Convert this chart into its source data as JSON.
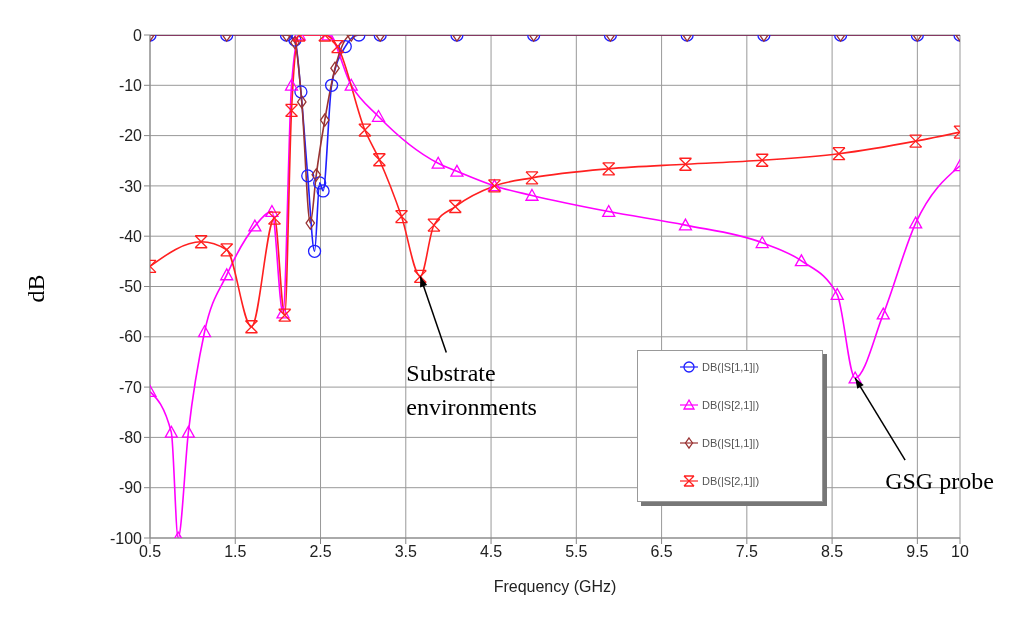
{
  "chart_data": {
    "type": "line",
    "xlabel": "Frequency (GHz)",
    "ylabel": "dB",
    "xlim": [
      0.5,
      10
    ],
    "xticks": [
      0.5,
      1.5,
      2.5,
      3.5,
      4.5,
      5.5,
      6.5,
      7.5,
      8.5,
      9.5,
      10
    ],
    "ylim": [
      -100,
      0
    ],
    "yticks": [
      -100,
      -90,
      -80,
      -70,
      -60,
      -50,
      -40,
      -30,
      -20,
      -10,
      0
    ],
    "grid": true,
    "legend": "bottom right",
    "line_style": "solid",
    "series": [
      {
        "name": "DB(|S[1,1]|)",
        "color": "#1f1fff",
        "marker": "circle",
        "x": [
          0.5,
          1.4,
          2.1,
          2.2,
          2.27,
          2.35,
          2.43,
          2.49,
          2.53,
          2.63,
          2.79,
          2.95,
          3.2,
          4.1,
          5.0,
          5.9,
          6.8,
          7.7,
          8.6,
          9.5,
          10
        ],
        "values": [
          0,
          0,
          0,
          -1,
          -11.3,
          -28,
          -43,
          -29.4,
          -31,
          -10,
          -2.3,
          0,
          0,
          0,
          0,
          0,
          0,
          0,
          0,
          0,
          0
        ]
      },
      {
        "name": "DB(|S[2,1]|)",
        "color": "#ff00ff",
        "marker": "triangle",
        "x": [
          0.5,
          0.75,
          0.83,
          0.95,
          1.14,
          1.4,
          1.73,
          1.93,
          2.06,
          2.16,
          2.25,
          2.59,
          2.86,
          3.18,
          3.88,
          4.1,
          4.54,
          4.98,
          5.88,
          6.78,
          7.68,
          8.14,
          8.56,
          8.77,
          9.1,
          9.48,
          10
        ],
        "values": [
          -70.9,
          -79,
          -100,
          -79,
          -59,
          -47.7,
          -38,
          -35.1,
          -55.3,
          -10,
          0,
          0,
          -10,
          -16.2,
          -25.5,
          -27.1,
          -30,
          -31.9,
          -35.1,
          -37.8,
          -41.3,
          -44.9,
          -51.6,
          -68.2,
          -55.5,
          -37.4,
          -26
        ]
      },
      {
        "name": "DB(|S[1,1]|)",
        "color": "#993333",
        "marker": "diamond",
        "x": [
          0.5,
          1.4,
          2.1,
          2.2,
          2.28,
          2.38,
          2.45,
          2.55,
          2.67,
          2.86,
          3.2,
          4.1,
          5.0,
          5.9,
          6.8,
          7.7,
          8.6,
          9.5,
          10
        ],
        "values": [
          0,
          0,
          0,
          -1.5,
          -13.3,
          -37.4,
          -27.8,
          -16.9,
          -6.6,
          0,
          0,
          0,
          0,
          0,
          0,
          0,
          0,
          0,
          0
        ]
      },
      {
        "name": "DB(|S[2,1]|)",
        "color": "#ff2020",
        "marker": "cross",
        "x": [
          0.5,
          1.1,
          1.4,
          1.69,
          1.96,
          2.08,
          2.16,
          2.25,
          2.55,
          2.7,
          3.02,
          3.19,
          3.45,
          3.67,
          3.83,
          4.08,
          4.54,
          4.98,
          5.88,
          6.78,
          7.68,
          8.58,
          9.48,
          10
        ],
        "values": [
          -46,
          -41.1,
          -42.7,
          -58,
          -36.4,
          -55.7,
          -15,
          0,
          0,
          -2.3,
          -18.9,
          -24.8,
          -36.1,
          -48,
          -37.8,
          -34.1,
          -30,
          -28.4,
          -26.6,
          -25.7,
          -24.9,
          -23.6,
          -21.1,
          -19.3
        ]
      }
    ],
    "annotations": [
      {
        "text": "Substrate environments",
        "x": 3.67,
        "y": -48
      },
      {
        "text": "GSG probe",
        "x": 8.77,
        "y": -68.2
      }
    ]
  }
}
